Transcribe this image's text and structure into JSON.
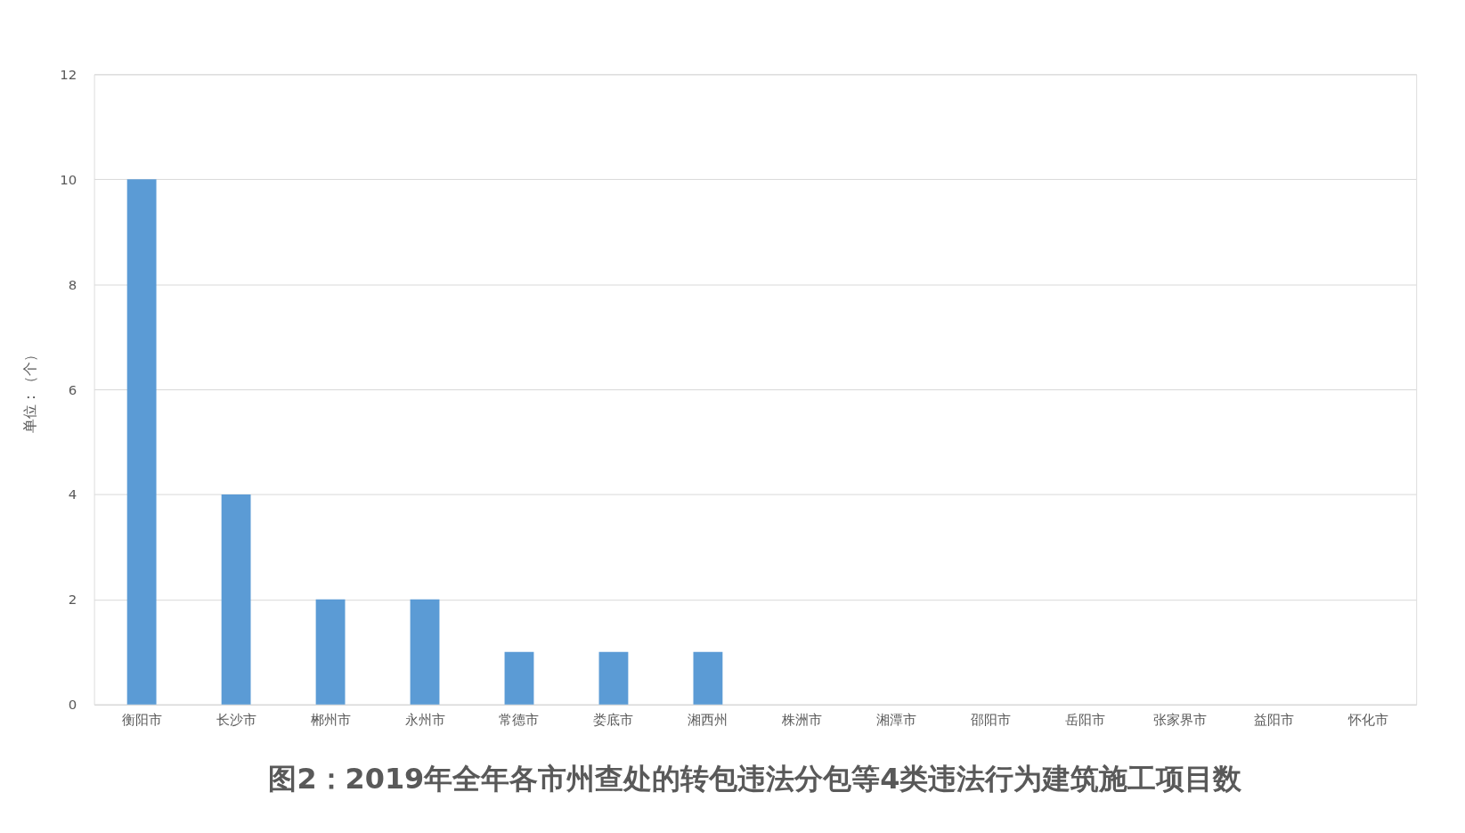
{
  "chart_data": {
    "type": "bar",
    "title": "图2：2019年全年各市州查处的转包违法分包等4类违法行为建筑施工项目数",
    "ylabel": "单位：（个）",
    "categories": [
      "衡阳市",
      "长沙市",
      "郴州市",
      "永州市",
      "常德市",
      "娄底市",
      "湘西州",
      "株洲市",
      "湘潭市",
      "邵阳市",
      "岳阳市",
      "张家界市",
      "益阳市",
      "怀化市"
    ],
    "values": [
      10,
      4,
      2,
      2,
      1,
      1,
      1,
      0,
      0,
      0,
      0,
      0,
      0,
      0
    ],
    "color": "#5b9bd5",
    "ylim": [
      0,
      12
    ],
    "yticks": [
      0,
      2,
      4,
      6,
      8,
      10,
      12
    ],
    "grid": "y"
  }
}
